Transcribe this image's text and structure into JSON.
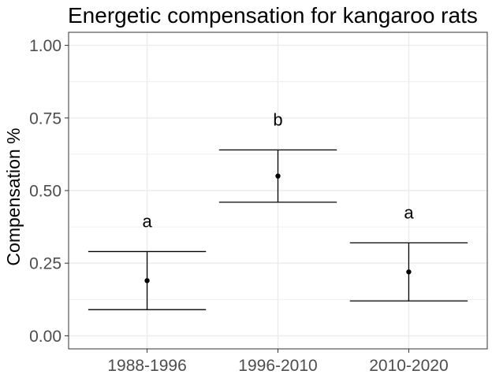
{
  "chart_data": {
    "type": "errorbar",
    "title": "Energetic compensation for kangaroo rats",
    "xlabel": "",
    "ylabel": "Compensation %",
    "categories": [
      "1988-1996",
      "1996-2010",
      "2010-2020"
    ],
    "series": [
      {
        "values": [
          0.19,
          0.55,
          0.22
        ],
        "lower": [
          0.09,
          0.46,
          0.12
        ],
        "upper": [
          0.29,
          0.64,
          0.32
        ],
        "group_labels": [
          "a",
          "b",
          "a"
        ]
      }
    ],
    "yticks": [
      "0.00",
      "0.25",
      "0.50",
      "0.75",
      "1.00"
    ],
    "ylim": [
      -0.045,
      1.045
    ],
    "grid": true,
    "legend": "none",
    "colors": {
      "points": "#000000",
      "errorbars": "#000000",
      "grid": "#ebebeb",
      "panel_border": "#333333",
      "tick_text": "#4d4d4d"
    }
  }
}
